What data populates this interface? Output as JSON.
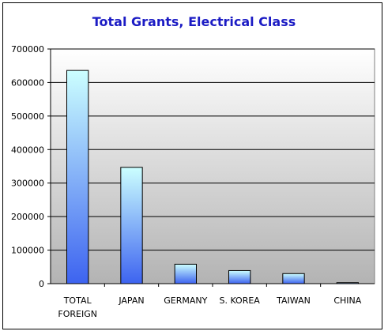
{
  "chart_data": {
    "type": "bar",
    "title": "Total Grants, Electrical Class",
    "categories": [
      "TOTAL FOREIGN",
      "JAPAN",
      "GERMANY",
      "S. KOREA",
      "TAIWAN",
      "CHINA"
    ],
    "category_lines": [
      [
        "TOTAL",
        "FOREIGN"
      ],
      [
        "JAPAN"
      ],
      [
        "GERMANY"
      ],
      [
        "S. KOREA"
      ],
      [
        "TAIWAN"
      ],
      [
        "CHINA"
      ]
    ],
    "values": [
      636000,
      347000,
      58000,
      39000,
      30000,
      3000
    ],
    "ylim": [
      0,
      700000
    ],
    "yticks": [
      "0",
      "100000",
      "200000",
      "300000",
      "400000",
      "500000",
      "600000",
      "700000"
    ],
    "grid": true,
    "xlabel": "",
    "ylabel": "",
    "colors": {
      "bar_top": "#ccffff",
      "bar_bottom": "#3d63f0",
      "bar_stroke": "#000000",
      "plot_top": "#ffffff",
      "plot_bottom": "#b3b3b3",
      "title": "#1c1cc4"
    }
  }
}
